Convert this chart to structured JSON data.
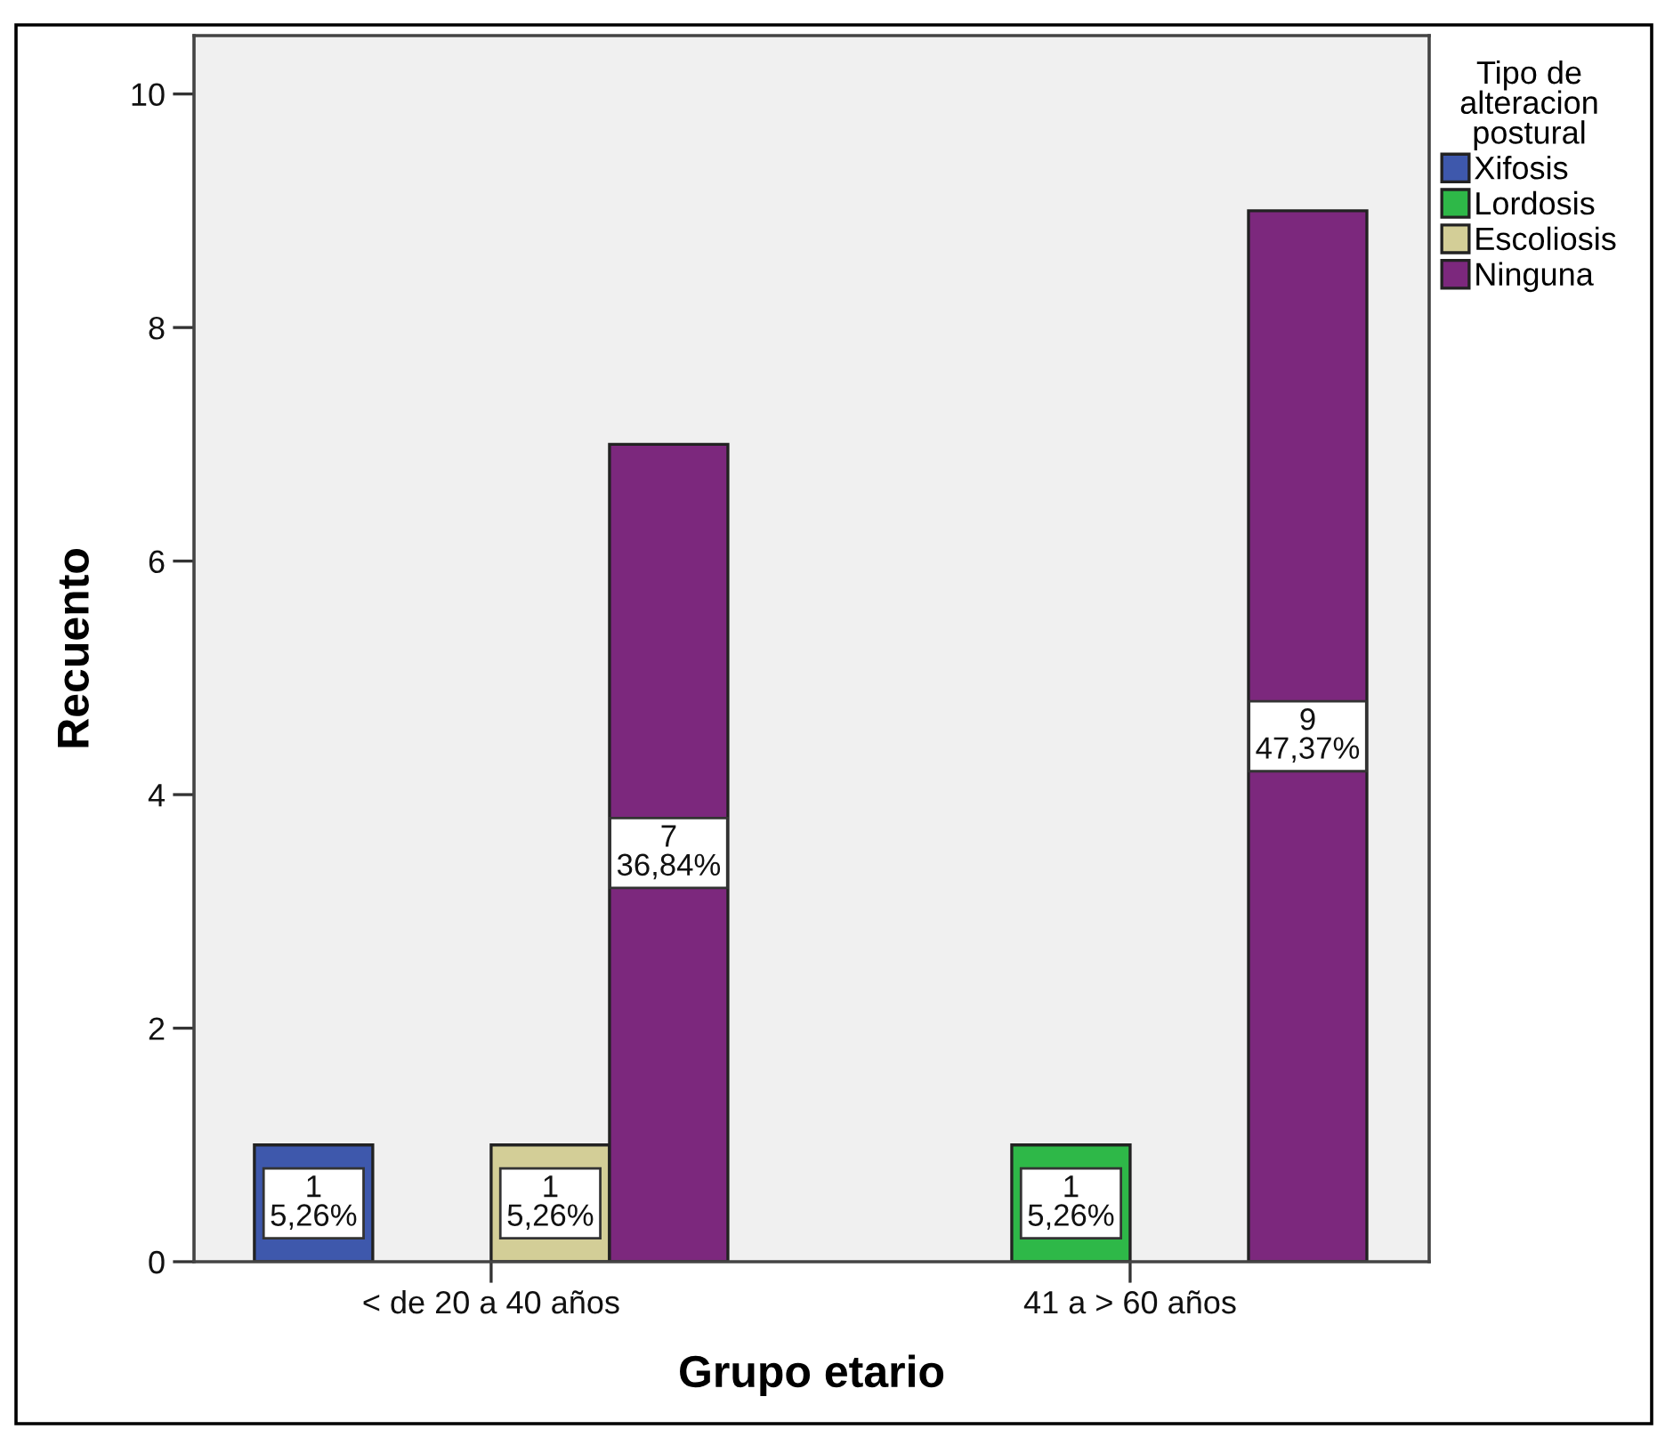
{
  "chart_data": {
    "type": "bar",
    "xlabel": "Grupo etario",
    "ylabel": "Recuento",
    "legend_title": "Tipo de\nalteracion\npostural",
    "categories": [
      "< de 20 a 40 años",
      "41 a > 60 años"
    ],
    "series": [
      {
        "name": "Xifosis",
        "color": "#3e58ac",
        "values": [
          1,
          null
        ],
        "value_labels": [
          "1\n5,26%",
          null
        ]
      },
      {
        "name": "Lordosis",
        "color": "#2eb848",
        "values": [
          null,
          1
        ],
        "value_labels": [
          null,
          "1\n5,26%"
        ]
      },
      {
        "name": "Escoliosis",
        "color": "#d3ce97",
        "values": [
          1,
          null
        ],
        "value_labels": [
          "1\n5,26%",
          null
        ]
      },
      {
        "name": "Ninguna",
        "color": "#7c287d",
        "values": [
          7,
          9
        ],
        "value_labels": [
          "7\n36,84%",
          "9\n47,37%"
        ]
      }
    ],
    "ylim": [
      0,
      10.5
    ],
    "yticks": [
      0,
      2,
      4,
      6,
      8,
      10
    ],
    "legend": "top right"
  }
}
